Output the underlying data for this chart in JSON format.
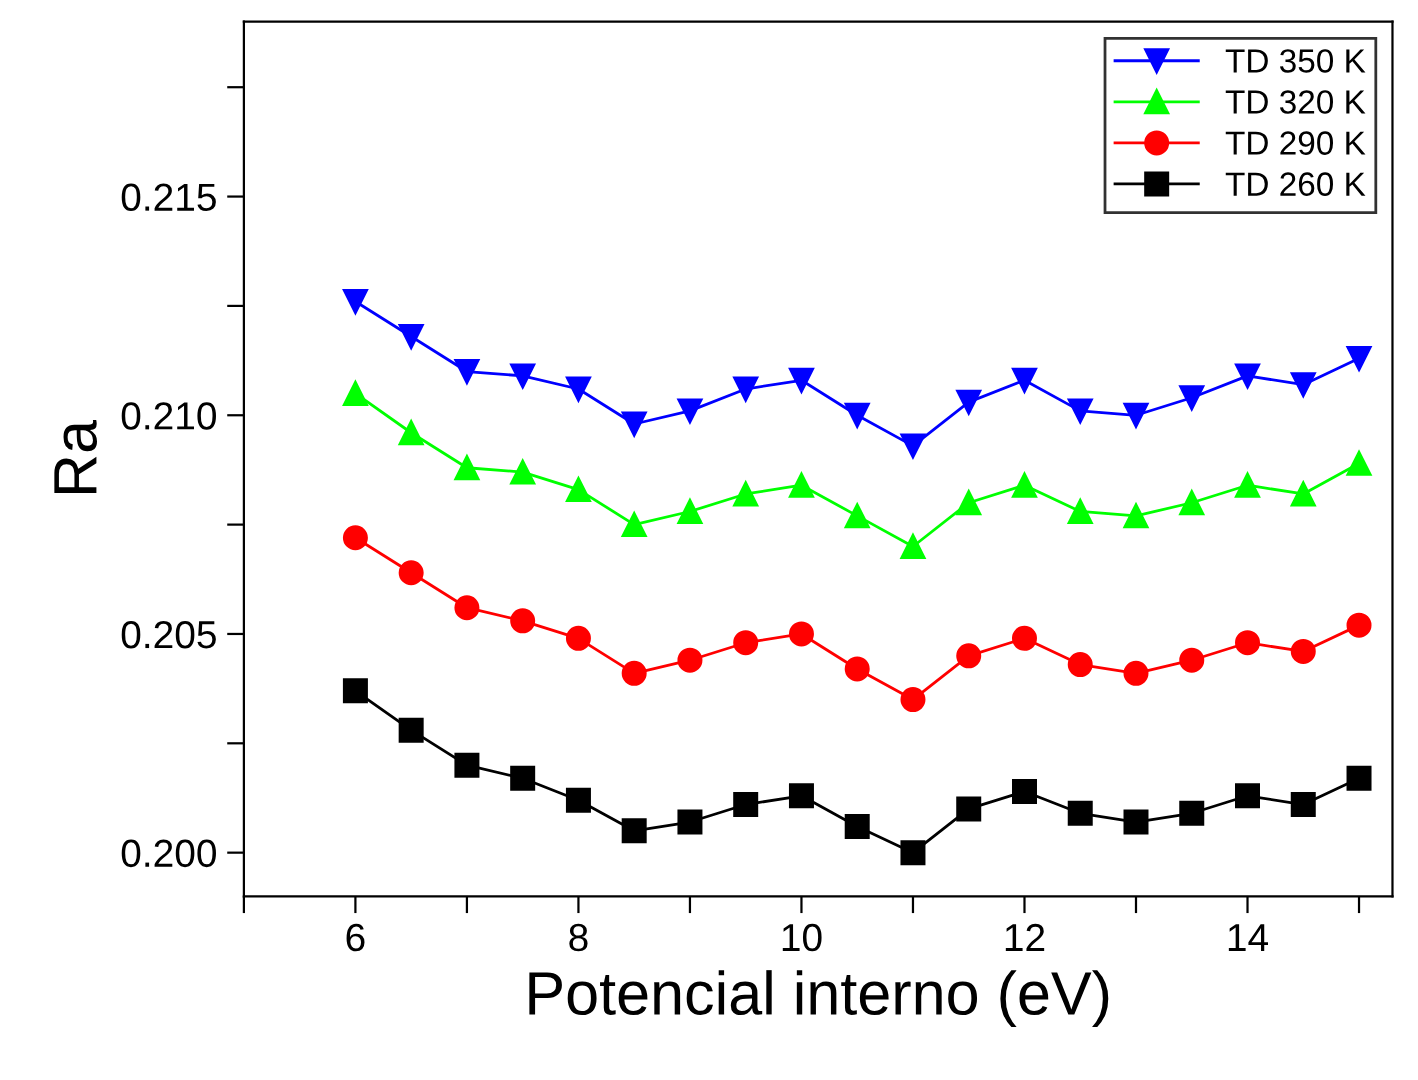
{
  "chart_data": {
    "type": "line",
    "xlabel": "Potencial interno (eV)",
    "ylabel": "Ra",
    "x": [
      6,
      6.5,
      7,
      7.5,
      8,
      8.5,
      9,
      9.5,
      10,
      10.5,
      11,
      11.5,
      12,
      12.5,
      13,
      13.5,
      14,
      14.5,
      15
    ],
    "series": [
      {
        "name": "TD 350 K",
        "color": "#0000ff",
        "marker": "triangle_down",
        "values": [
          0.2126,
          0.2118,
          0.211,
          0.2109,
          0.2106,
          0.2098,
          0.2101,
          0.2106,
          0.2108,
          0.21,
          0.2093,
          0.2103,
          0.2108,
          0.2101,
          0.21,
          0.2104,
          0.2109,
          0.2107,
          0.2113
        ]
      },
      {
        "name": "TD 320 K",
        "color": "#00ff00",
        "marker": "triangle",
        "values": [
          0.2105,
          0.2096,
          0.2088,
          0.2087,
          0.2083,
          0.2075,
          0.2078,
          0.2082,
          0.2084,
          0.2077,
          0.207,
          0.208,
          0.2084,
          0.2078,
          0.2077,
          0.208,
          0.2084,
          0.2082,
          0.2089
        ]
      },
      {
        "name": "TD 290 K",
        "color": "#ff0000",
        "marker": "circle",
        "values": [
          0.2072,
          0.2064,
          0.2056,
          0.2053,
          0.2049,
          0.2041,
          0.2044,
          0.2048,
          0.205,
          0.2042,
          0.2035,
          0.2045,
          0.2049,
          0.2043,
          0.2041,
          0.2044,
          0.2048,
          0.2046,
          0.2052
        ]
      },
      {
        "name": "TD 260 K",
        "color": "#000000",
        "marker": "square",
        "values": [
          0.2037,
          0.2028,
          0.202,
          0.2017,
          0.2012,
          0.2005,
          0.2007,
          0.2011,
          0.2013,
          0.2006,
          0.2,
          0.201,
          0.2014,
          0.2009,
          0.2007,
          0.2009,
          0.2013,
          0.2011,
          0.2017
        ]
      }
    ],
    "xlim": [
      5,
      15.3
    ],
    "ylim": [
      0.199,
      0.219
    ],
    "xticks": [
      {
        "value": 5,
        "label": null
      },
      6,
      {
        "value": 7,
        "label": null
      },
      8,
      {
        "value": 9,
        "label": null
      },
      10,
      {
        "value": 11,
        "label": null
      },
      12,
      {
        "value": 13,
        "label": null
      },
      14,
      {
        "value": 15,
        "label": null
      }
    ],
    "yticks": [
      "0.200",
      {
        "value": 0.2025,
        "label": null
      },
      0.205,
      {
        "value": 0.2075,
        "label": null
      },
      "0.210",
      {
        "value": 0.2125,
        "label": null
      },
      0.215,
      {
        "value": 0.2175,
        "label": null
      }
    ],
    "legend": "top right",
    "grid": false,
    "line_style": "solid"
  }
}
